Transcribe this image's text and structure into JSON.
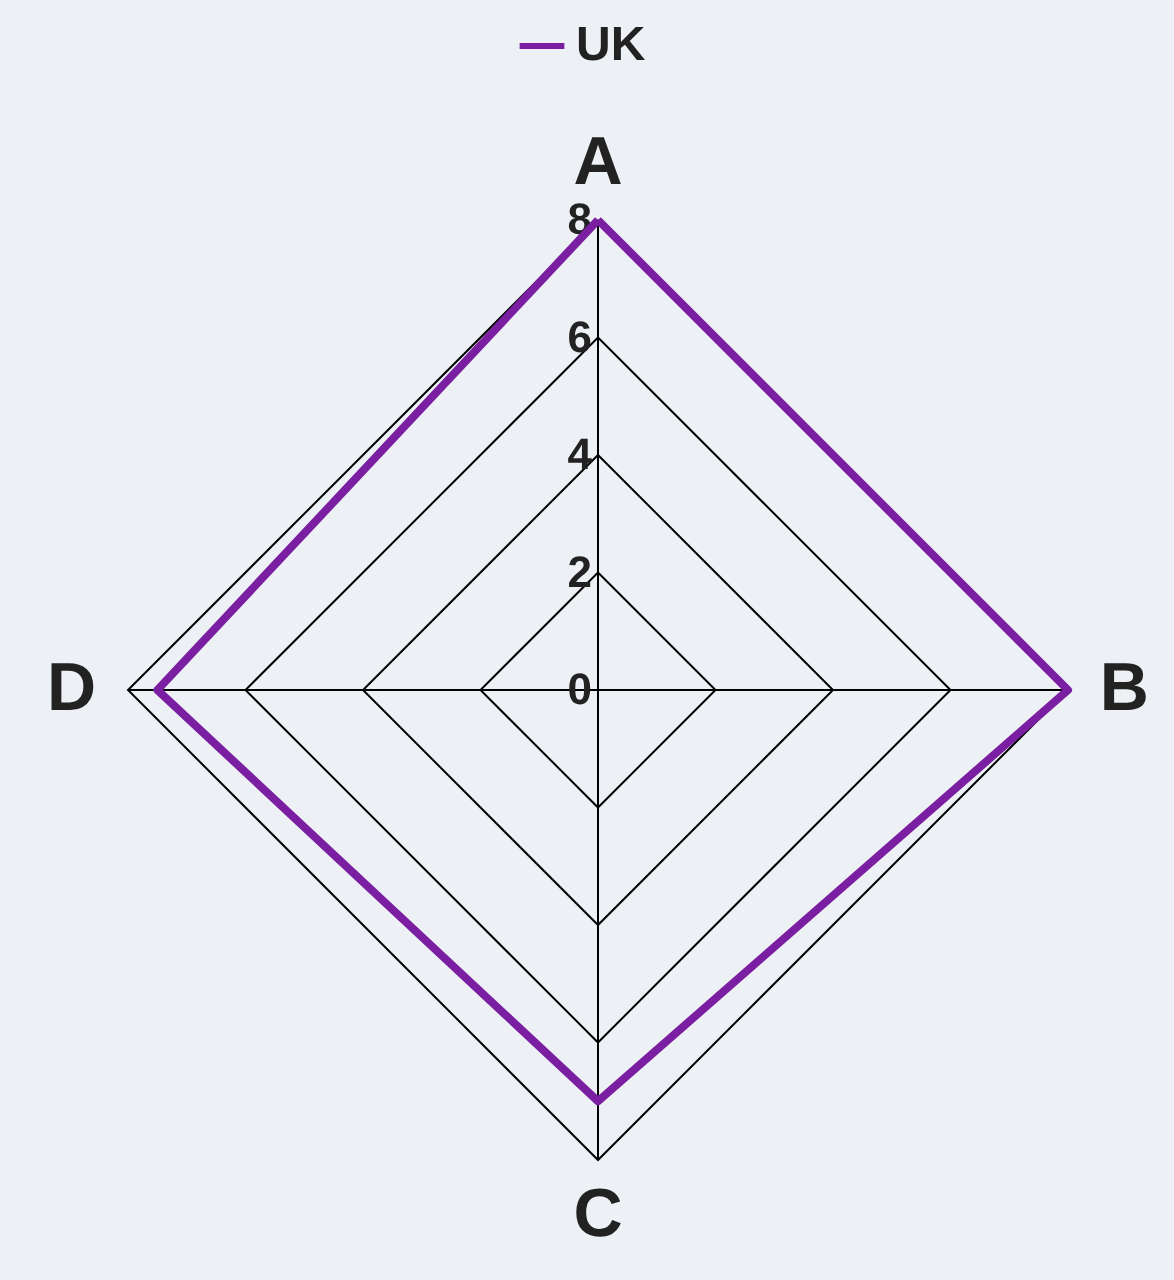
{
  "chart_data": {
    "type": "radar",
    "categories": [
      "A",
      "B",
      "C",
      "D"
    ],
    "series": [
      {
        "name": "UK",
        "color": "#7b1fa2",
        "values": [
          8,
          8,
          7,
          7.5
        ]
      }
    ],
    "ylim": [
      0,
      8
    ],
    "yticks": [
      0,
      2,
      4,
      6,
      8
    ],
    "grid": true,
    "legend": "top"
  }
}
